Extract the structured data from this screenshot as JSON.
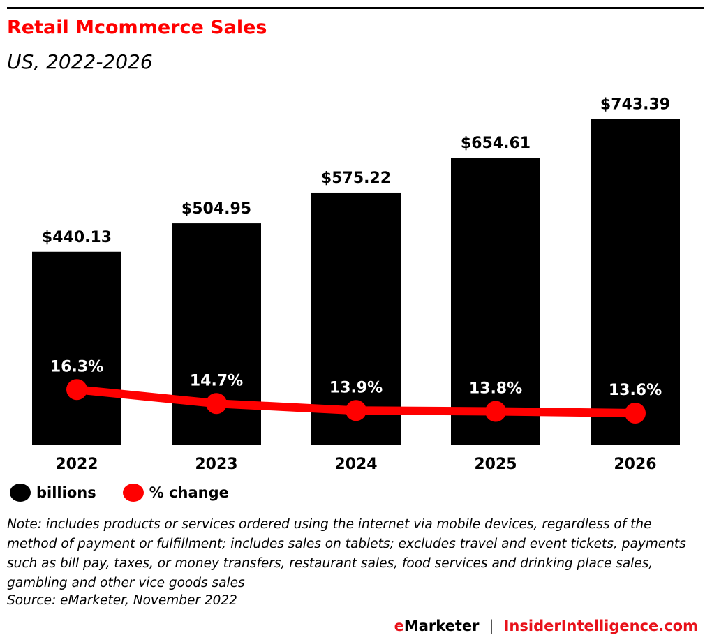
{
  "header": {
    "title": "Retail Mcommerce Sales",
    "subtitle": "US, 2022-2026"
  },
  "chart_data": {
    "type": "bar",
    "categories": [
      "2022",
      "2023",
      "2024",
      "2025",
      "2026"
    ],
    "series": [
      {
        "name": "billions",
        "type": "bar",
        "values": [
          440.13,
          504.95,
          575.22,
          654.61,
          743.39
        ],
        "labels": [
          "$440.13",
          "$504.95",
          "$575.22",
          "$654.61",
          "$743.39"
        ],
        "color": "#000000"
      },
      {
        "name": "% change",
        "type": "line",
        "values": [
          16.3,
          14.7,
          13.9,
          13.8,
          13.6
        ],
        "labels": [
          "16.3%",
          "14.7%",
          "13.9%",
          "13.8%",
          "13.6%"
        ],
        "color": "#ff0000"
      }
    ],
    "ylim": [
      0,
      760
    ],
    "grid": false,
    "legend": "bottom-left"
  },
  "legend": {
    "items": [
      {
        "label": "billions",
        "color": "#000000"
      },
      {
        "label": "% change",
        "color": "#ff0000"
      }
    ]
  },
  "note": "Note: includes products or services ordered using the internet via mobile devices, regardless of the method of payment or fulfillment; includes sales on tablets; excludes travel and event tickets, payments such as bill pay, taxes, or money transfers, restaurant sales, food services and drinking place sales, gambling and other vice goods sales",
  "source": "Source: eMarketer, November 2022",
  "footer": {
    "brand_e": "e",
    "brand_marketer": "Marketer",
    "separator": "|",
    "brand2": "InsiderIntelligence.com"
  }
}
